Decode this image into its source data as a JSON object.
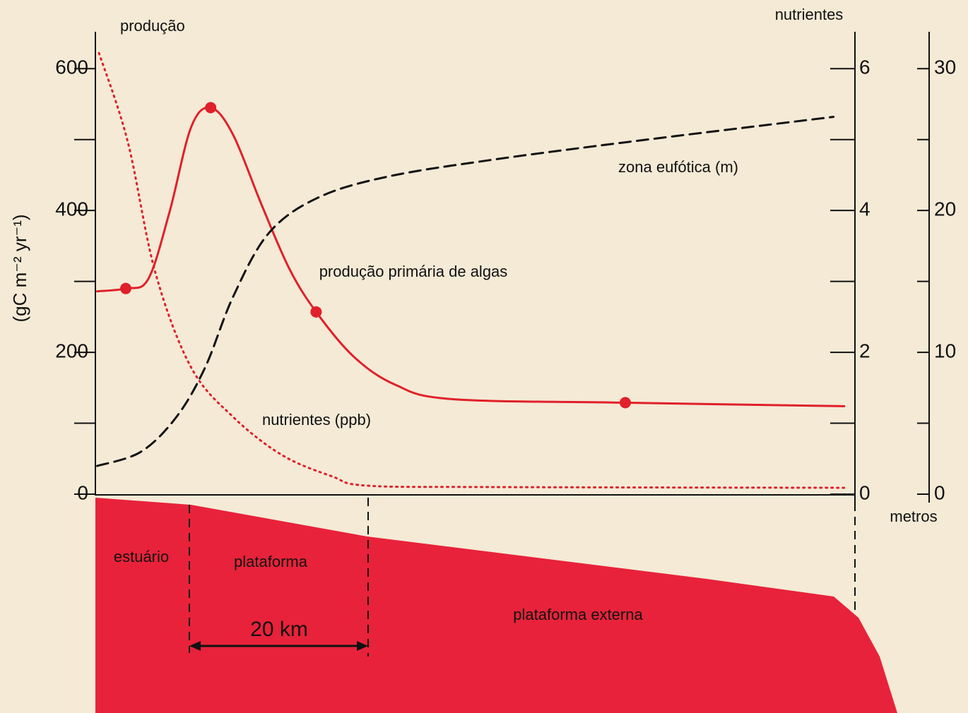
{
  "chart_data": {
    "type": "line",
    "y_label": "(gC m⁻² yr⁻¹)",
    "y_title": "produção",
    "y2_title": "nutrientes",
    "y3_title": "metros",
    "xlim": [
      0,
      85
    ],
    "ylim": [
      0,
      650
    ],
    "yticks": [
      0,
      200,
      400,
      600
    ],
    "yminor": [
      100,
      300,
      500
    ],
    "y2lim": [
      0,
      6.5
    ],
    "y2ticks": [
      0,
      2,
      4,
      6
    ],
    "y2minor": [
      1,
      3,
      5
    ],
    "y3lim": [
      0,
      32.5
    ],
    "y3ticks": [
      0,
      10,
      20,
      30
    ],
    "y3minor": [
      5,
      15,
      25
    ],
    "series": [
      {
        "name": "produção primária de algas",
        "color": "#e0202a",
        "style": "solid",
        "axis": "y",
        "x": [
          0.2,
          3.4,
          5.9,
          8.3,
          10.7,
          12.9,
          15.4,
          18.6,
          21.7,
          24.7,
          28.9,
          33.6,
          39.9,
          59.3,
          83.8
        ],
        "values": [
          286,
          290,
          303,
          398,
          517,
          545,
          507,
          408,
          318,
          257,
          194,
          154,
          134,
          129,
          124
        ]
      },
      {
        "name": "nutrientes (ppb)",
        "color": "#e0202a",
        "style": "dotted",
        "axis": "y2",
        "x": [
          0.4,
          3.6,
          6.7,
          10.7,
          15.4,
          20.9,
          26.5,
          30.4,
          44.7,
          83.8
        ],
        "values": [
          6.22,
          4.98,
          3.13,
          1.79,
          1.09,
          0.55,
          0.25,
          0.12,
          0.1,
          0.09
        ]
      },
      {
        "name": "zona eufótica (m)",
        "color": "#111111",
        "style": "dashed",
        "axis": "y3",
        "x": [
          0.2,
          5.1,
          9.1,
          12.3,
          15.4,
          19.4,
          24.9,
          32.8,
          44.7,
          60.5,
          82.6
        ],
        "values": [
          1.99,
          2.99,
          5.47,
          8.96,
          13.9,
          18.4,
          20.9,
          22.4,
          23.6,
          24.9,
          26.6
        ]
      }
    ],
    "points": {
      "color": "#e0202a",
      "x": [
        3.4,
        12.9,
        24.7,
        59.3
      ],
      "values": [
        290,
        545,
        257,
        129
      ]
    },
    "regions": [
      "estuário",
      "plataforma",
      "plataforma externa"
    ],
    "scale_label": "20 km"
  }
}
